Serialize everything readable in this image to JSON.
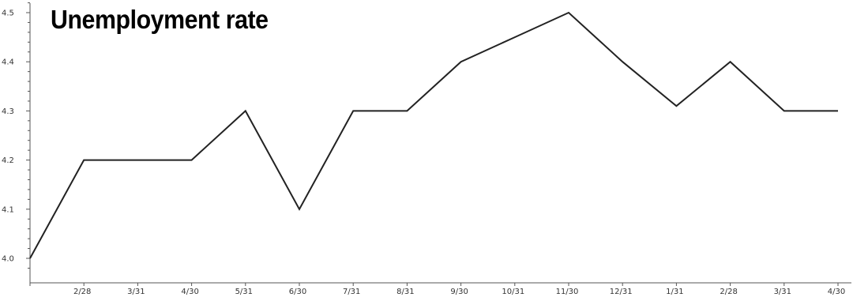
{
  "chart_data": {
    "type": "line",
    "title": "Unemployment rate",
    "xlabel": "",
    "ylabel": "",
    "x": [
      "",
      "2/28",
      "3/31",
      "4/30",
      "5/31",
      "6/30",
      "7/31",
      "8/31",
      "9/30",
      "10/31",
      "11/30",
      "12/31",
      "1/31",
      "2/28",
      "3/31",
      "4/30"
    ],
    "series": [
      {
        "values": [
          4.0,
          4.2,
          4.2,
          4.2,
          4.3,
          4.1,
          4.3,
          4.3,
          4.4,
          4.45,
          4.5,
          4.4,
          4.31,
          4.4,
          4.3,
          4.3
        ]
      }
    ],
    "ylim": [
      3.97,
      4.52
    ],
    "yticks": [
      "4.0",
      "4.1",
      "4.2",
      "4.3",
      "4.4",
      "4.5"
    ],
    "grid": false,
    "line_color": "#222222",
    "axis_color": "#555555"
  }
}
